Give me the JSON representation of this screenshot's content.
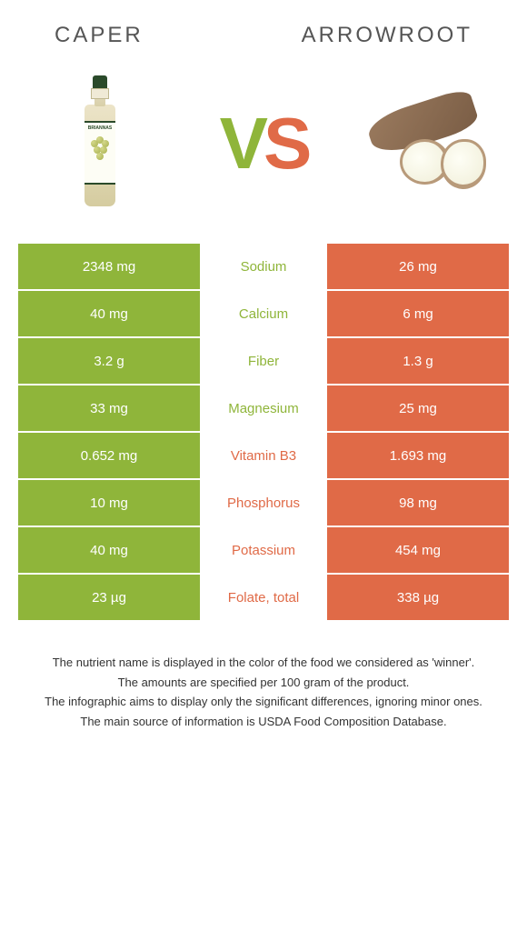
{
  "left_food": "Caper",
  "right_food": "Arrowroot",
  "vs_text": {
    "v": "V",
    "s": "S"
  },
  "colors": {
    "left": "#8fb53a",
    "right": "#e06a47",
    "left_text": "#8fb53a",
    "right_text": "#e06a47"
  },
  "rows": [
    {
      "left": "2348 mg",
      "label": "Sodium",
      "right": "26 mg",
      "winner": "left"
    },
    {
      "left": "40 mg",
      "label": "Calcium",
      "right": "6 mg",
      "winner": "left"
    },
    {
      "left": "3.2 g",
      "label": "Fiber",
      "right": "1.3 g",
      "winner": "left"
    },
    {
      "left": "33 mg",
      "label": "Magnesium",
      "right": "25 mg",
      "winner": "left"
    },
    {
      "left": "0.652 mg",
      "label": "Vitamin B3",
      "right": "1.693 mg",
      "winner": "right"
    },
    {
      "left": "10 mg",
      "label": "Phosphorus",
      "right": "98 mg",
      "winner": "right"
    },
    {
      "left": "40 mg",
      "label": "Potassium",
      "right": "454 mg",
      "winner": "right"
    },
    {
      "left": "23 µg",
      "label": "Folate, total",
      "right": "338 µg",
      "winner": "right"
    }
  ],
  "footer": [
    "The nutrient name is displayed in the color of the food we considered as 'winner'.",
    "The amounts are specified per 100 gram of the product.",
    "The infographic aims to display only the significant differences, ignoring minor ones.",
    "The main source of information is USDA Food Composition Database."
  ]
}
